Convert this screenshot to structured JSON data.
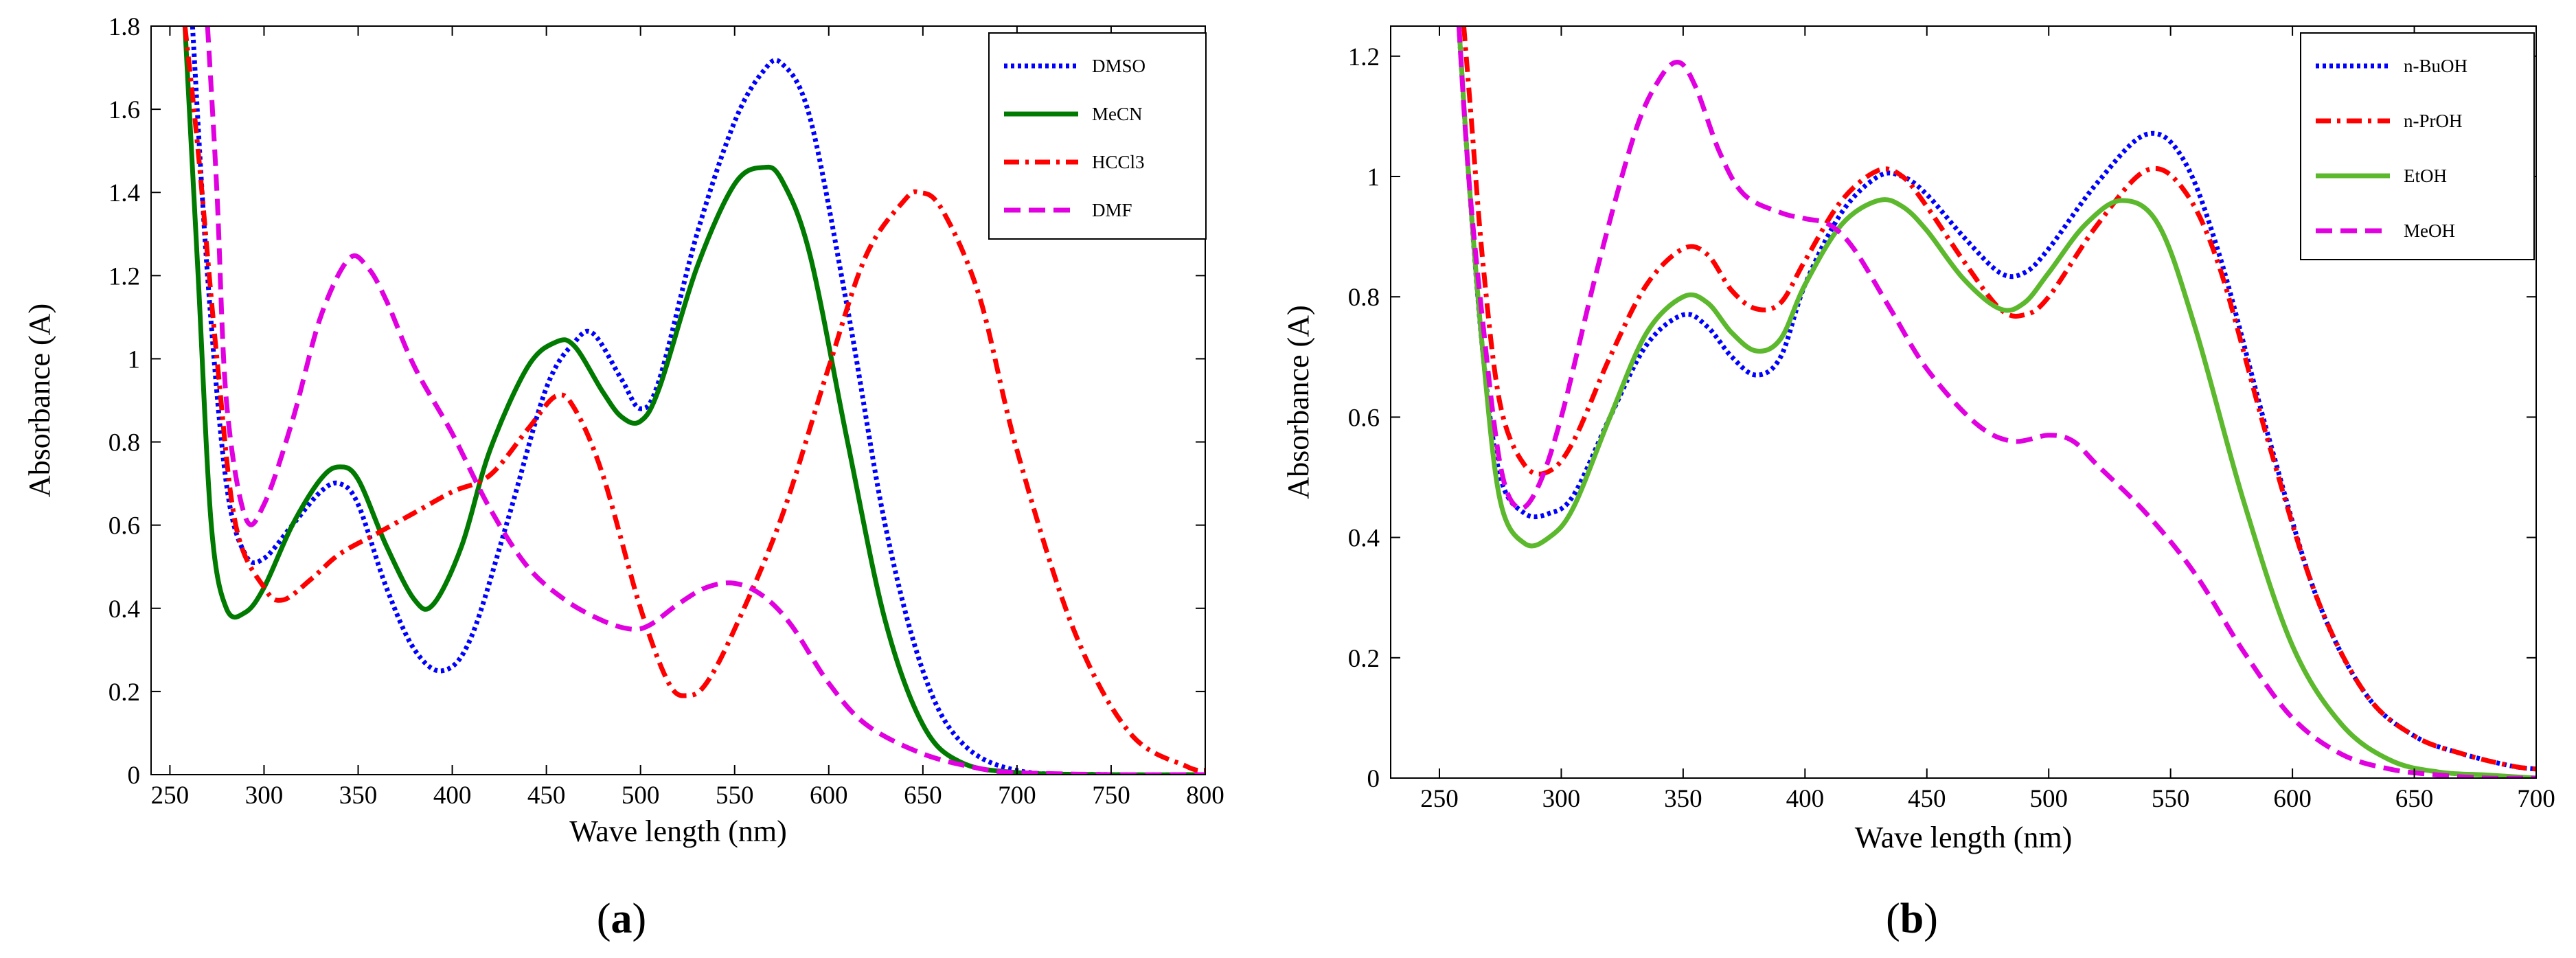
{
  "chart_data": [
    {
      "type": "line",
      "panel_label": "(a)",
      "panel_letter": "a",
      "xlabel": "Wave length (nm)",
      "ylabel": "Absorbance (A)",
      "xlim": [
        240,
        800
      ],
      "ylim": [
        0,
        1.8
      ],
      "xticks": [
        250,
        300,
        350,
        400,
        450,
        500,
        550,
        600,
        650,
        700,
        750,
        800
      ],
      "yticks": [
        0,
        0.2,
        0.4,
        0.6,
        0.8,
        1,
        1.2,
        1.4,
        1.6,
        1.8
      ],
      "grid": false,
      "legend_position": "top-right",
      "series": [
        {
          "name": "DMSO",
          "color": "#0000ff",
          "style": "dotted",
          "x": [
            262,
            270,
            280,
            290,
            300,
            315,
            330,
            340,
            350,
            365,
            380,
            395,
            410,
            430,
            450,
            465,
            475,
            490,
            500,
            510,
            530,
            550,
            565,
            575,
            590,
            610,
            630,
            650,
            670,
            700,
            750,
            800
          ],
          "y": [
            1.8,
            1.2,
            0.7,
            0.53,
            0.52,
            0.6,
            0.68,
            0.7,
            0.65,
            0.45,
            0.3,
            0.25,
            0.33,
            0.62,
            0.93,
            1.04,
            1.06,
            0.95,
            0.88,
            0.95,
            1.3,
            1.57,
            1.69,
            1.71,
            1.58,
            1.12,
            0.6,
            0.25,
            0.08,
            0.01,
            0.0,
            0.0
          ]
        },
        {
          "name": "MeCN",
          "color": "#007a00",
          "style": "solid",
          "x": [
            258,
            265,
            272,
            280,
            290,
            300,
            315,
            330,
            340,
            350,
            365,
            380,
            390,
            405,
            420,
            440,
            455,
            465,
            480,
            490,
            500,
            510,
            530,
            550,
            565,
            575,
            590,
            610,
            630,
            650,
            670,
            700,
            750,
            800
          ],
          "y": [
            1.8,
            1.2,
            0.6,
            0.4,
            0.39,
            0.45,
            0.6,
            0.71,
            0.74,
            0.71,
            0.55,
            0.42,
            0.41,
            0.55,
            0.78,
            0.98,
            1.04,
            1.03,
            0.92,
            0.86,
            0.85,
            0.93,
            1.22,
            1.42,
            1.46,
            1.43,
            1.25,
            0.8,
            0.37,
            0.12,
            0.03,
            0.005,
            0.0,
            0.0
          ]
        },
        {
          "name": "HCCl3",
          "color": "#ff0000",
          "style": "dashdot",
          "x": [
            258,
            265,
            275,
            285,
            300,
            310,
            325,
            340,
            360,
            380,
            400,
            420,
            440,
            455,
            465,
            480,
            500,
            515,
            525,
            535,
            550,
            575,
            600,
            620,
            640,
            648,
            660,
            680,
            700,
            730,
            760,
            790,
            800
          ],
          "y": [
            1.8,
            1.5,
            1.0,
            0.6,
            0.45,
            0.42,
            0.47,
            0.53,
            0.58,
            0.63,
            0.68,
            0.72,
            0.83,
            0.91,
            0.88,
            0.72,
            0.4,
            0.22,
            0.19,
            0.22,
            0.35,
            0.62,
            0.98,
            1.25,
            1.38,
            1.4,
            1.36,
            1.15,
            0.78,
            0.35,
            0.1,
            0.02,
            0.01
          ]
        },
        {
          "name": "DMF",
          "color": "#e000e0",
          "style": "dashed",
          "x": [
            270,
            275,
            280,
            290,
            300,
            315,
            330,
            345,
            355,
            365,
            380,
            400,
            420,
            440,
            460,
            480,
            495,
            505,
            520,
            535,
            550,
            565,
            580,
            600,
            620,
            650,
            680,
            700,
            750,
            800
          ],
          "y": [
            1.8,
            1.4,
            0.9,
            0.62,
            0.65,
            0.85,
            1.1,
            1.24,
            1.22,
            1.14,
            0.98,
            0.82,
            0.64,
            0.5,
            0.42,
            0.37,
            0.35,
            0.36,
            0.41,
            0.45,
            0.46,
            0.43,
            0.36,
            0.22,
            0.12,
            0.05,
            0.015,
            0.005,
            0.0,
            0.0
          ]
        }
      ]
    },
    {
      "type": "line",
      "panel_label": "(b)",
      "panel_letter": "b",
      "xlabel": "Wave length (nm)",
      "ylabel": "Absorbance (A)",
      "xlim": [
        230,
        700
      ],
      "ylim": [
        0,
        1.25
      ],
      "xticks": [
        250,
        300,
        350,
        400,
        450,
        500,
        550,
        600,
        650,
        700
      ],
      "yticks": [
        0,
        0.2,
        0.4,
        0.6,
        0.8,
        1,
        1.2
      ],
      "grid": false,
      "legend_position": "top-right",
      "series": [
        {
          "name": "n-BuOH",
          "color": "#0000ff",
          "style": "dotted",
          "x": [
            258,
            262,
            268,
            275,
            285,
            295,
            305,
            320,
            335,
            350,
            360,
            370,
            380,
            390,
            400,
            415,
            430,
            440,
            450,
            465,
            480,
            490,
            500,
            520,
            540,
            555,
            570,
            590,
            610,
            630,
            650,
            670,
            690,
            700
          ],
          "y": [
            1.25,
            1.0,
            0.7,
            0.5,
            0.44,
            0.44,
            0.47,
            0.6,
            0.72,
            0.77,
            0.75,
            0.7,
            0.67,
            0.7,
            0.82,
            0.94,
            1.0,
            1.0,
            0.97,
            0.9,
            0.84,
            0.84,
            0.88,
            0.99,
            1.07,
            1.03,
            0.87,
            0.57,
            0.3,
            0.14,
            0.07,
            0.04,
            0.02,
            0.015
          ]
        },
        {
          "name": "n-PrOH",
          "color": "#ff0000",
          "style": "dashdot",
          "x": [
            260,
            263,
            268,
            275,
            285,
            295,
            305,
            320,
            335,
            350,
            360,
            370,
            380,
            390,
            400,
            415,
            430,
            440,
            450,
            465,
            480,
            490,
            500,
            520,
            540,
            555,
            570,
            590,
            610,
            630,
            650,
            670,
            690,
            700
          ],
          "y": [
            1.25,
            1.1,
            0.85,
            0.62,
            0.52,
            0.51,
            0.56,
            0.7,
            0.82,
            0.88,
            0.87,
            0.81,
            0.78,
            0.79,
            0.86,
            0.96,
            1.01,
            1.0,
            0.95,
            0.86,
            0.78,
            0.77,
            0.8,
            0.92,
            1.01,
            0.98,
            0.85,
            0.56,
            0.3,
            0.14,
            0.07,
            0.04,
            0.02,
            0.015
          ]
        },
        {
          "name": "EtOH",
          "color": "#5cb82c",
          "style": "solid",
          "x": [
            258,
            262,
            268,
            275,
            285,
            295,
            305,
            320,
            335,
            350,
            360,
            370,
            380,
            390,
            400,
            415,
            430,
            440,
            450,
            465,
            480,
            490,
            500,
            515,
            530,
            545,
            560,
            580,
            600,
            620,
            640,
            660,
            680,
            700
          ],
          "y": [
            1.25,
            1.0,
            0.7,
            0.46,
            0.39,
            0.4,
            0.45,
            0.6,
            0.74,
            0.8,
            0.79,
            0.74,
            0.71,
            0.73,
            0.82,
            0.92,
            0.96,
            0.95,
            0.91,
            0.83,
            0.78,
            0.79,
            0.84,
            0.92,
            0.96,
            0.92,
            0.75,
            0.46,
            0.22,
            0.09,
            0.03,
            0.01,
            0.005,
            0.0
          ]
        },
        {
          "name": "MeOH",
          "color": "#e000e0",
          "style": "dashed",
          "x": [
            258,
            262,
            268,
            275,
            282,
            290,
            300,
            315,
            330,
            340,
            348,
            355,
            365,
            375,
            390,
            400,
            410,
            420,
            435,
            450,
            470,
            485,
            500,
            510,
            520,
            540,
            560,
            580,
            600,
            620,
            640,
            660,
            680,
            700
          ],
          "y": [
            1.25,
            1.0,
            0.75,
            0.52,
            0.45,
            0.48,
            0.6,
            0.85,
            1.07,
            1.16,
            1.19,
            1.15,
            1.04,
            0.97,
            0.94,
            0.93,
            0.92,
            0.88,
            0.78,
            0.68,
            0.59,
            0.56,
            0.57,
            0.56,
            0.52,
            0.44,
            0.34,
            0.21,
            0.1,
            0.04,
            0.015,
            0.005,
            0.0,
            0.0
          ]
        }
      ]
    }
  ]
}
